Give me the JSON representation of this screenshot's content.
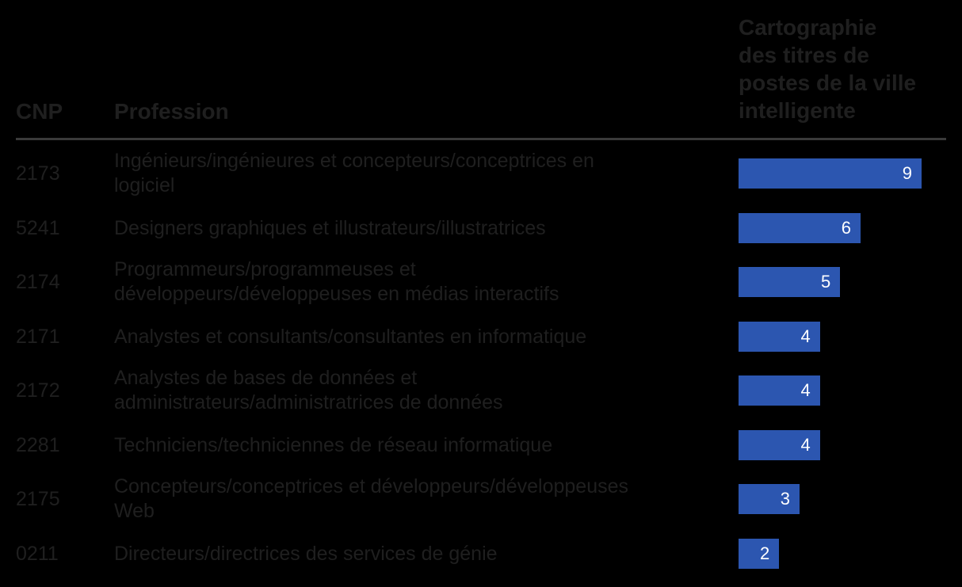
{
  "colors": {
    "bar": "#2c56b0",
    "text": "#1f1f1f",
    "value_text": "#ffffff",
    "background": "#000000"
  },
  "chart_data": {
    "type": "bar",
    "orientation": "horizontal",
    "headers": {
      "cnp": "CNP",
      "profession": "Profession",
      "value_lines": [
        "Cartographie",
        "des titres de",
        "postes de la ville",
        "intelligente"
      ]
    },
    "categories": [
      {
        "cnp": "2173",
        "lines": [
          "Ingénieurs/ingénieures et concepteurs/conceptrices en",
          "logiciel"
        ]
      },
      {
        "cnp": "5241",
        "lines": [
          "Designers graphiques et illustrateurs/illustratrices"
        ]
      },
      {
        "cnp": "2174",
        "lines": [
          "Programmeurs/programmeuses et",
          "développeurs/développeuses en médias interactifs"
        ]
      },
      {
        "cnp": "2171",
        "lines": [
          "Analystes et consultants/consultantes en informatique"
        ]
      },
      {
        "cnp": "2172",
        "lines": [
          "Analystes de bases de données et",
          "administrateurs/administratrices de données"
        ]
      },
      {
        "cnp": "2281",
        "lines": [
          "Techniciens/techniciennes de réseau informatique"
        ]
      },
      {
        "cnp": "2175",
        "lines": [
          "Concepteurs/conceptrices et développeurs/développeuses",
          "Web"
        ]
      },
      {
        "cnp": "0211",
        "lines": [
          "Directeurs/directrices des services de génie"
        ]
      }
    ],
    "values": [
      9,
      6,
      5,
      4,
      4,
      4,
      3,
      2
    ],
    "xlim": [
      0,
      9
    ],
    "grid": false
  }
}
